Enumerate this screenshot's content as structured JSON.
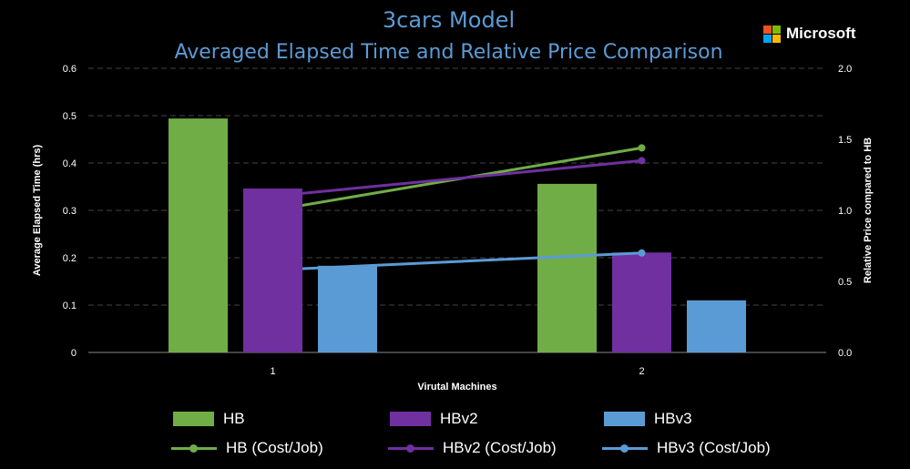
{
  "title": "3cars Model",
  "subtitle": "Averaged Elapsed Time and Relative Price Comparison",
  "logo": {
    "text": "Microsoft",
    "colors": [
      "#f25022",
      "#7fba00",
      "#00a4ef",
      "#ffb900"
    ]
  },
  "chart_data": {
    "type": "bar",
    "title": "3cars Model",
    "subtitle": "Averaged Elapsed Time and Relative Price Comparison",
    "xlabel": "Virutal Machines",
    "ylabel": "Average Elapsed Time (hrs)",
    "y2label": "Relative Price compared to HB",
    "categories": [
      "1",
      "2"
    ],
    "ylim": [
      0,
      0.6
    ],
    "y2lim": [
      0,
      2.0
    ],
    "yticks": [
      "0",
      "0.1",
      "0.2",
      "0.3",
      "0.4",
      "0.5",
      "0.6"
    ],
    "y2ticks": [
      "0.0",
      "0.5",
      "1.0",
      "1.5",
      "2.0"
    ],
    "grid": true,
    "legend": "bottom",
    "series": [
      {
        "name": "HB",
        "kind": "bar",
        "axis": "left",
        "color": "#70ad47",
        "values": [
          0.494,
          0.356
        ]
      },
      {
        "name": "HBv2",
        "kind": "bar",
        "axis": "left",
        "color": "#7030a0",
        "values": [
          0.346,
          0.211
        ]
      },
      {
        "name": "HBv3",
        "kind": "bar",
        "axis": "left",
        "color": "#5b9bd5",
        "values": [
          0.183,
          0.11
        ]
      },
      {
        "name": "HB (Cost/Job)",
        "kind": "line",
        "axis": "right",
        "color": "#70ad47",
        "values": [
          1.0,
          1.44
        ]
      },
      {
        "name": "HBv2 (Cost/Job)",
        "kind": "line",
        "axis": "right",
        "color": "#7030a0",
        "values": [
          1.1,
          1.35
        ]
      },
      {
        "name": "HBv3 (Cost/Job)",
        "kind": "line",
        "axis": "right",
        "color": "#5b9bd5",
        "values": [
          0.58,
          0.7
        ]
      }
    ]
  }
}
